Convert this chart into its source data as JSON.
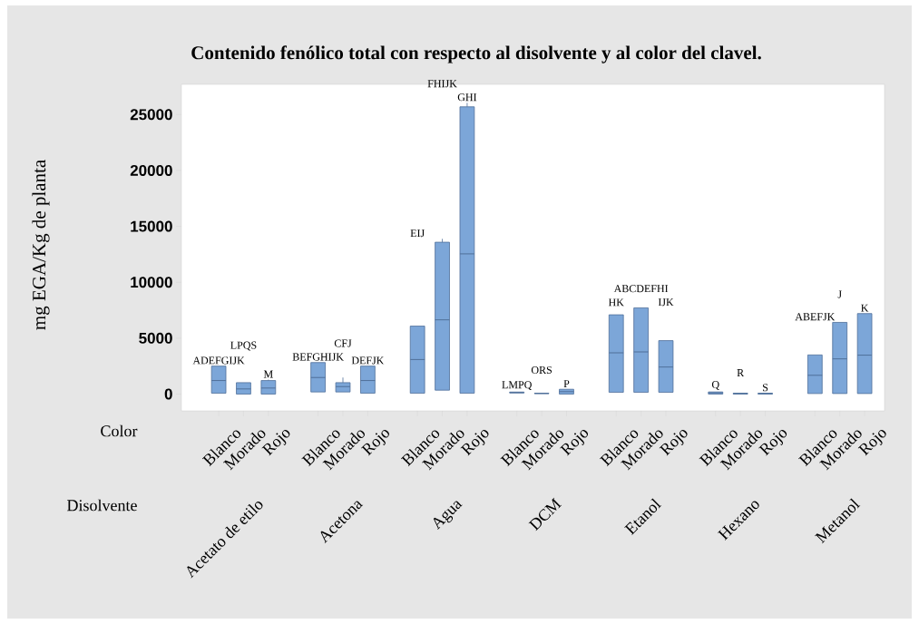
{
  "chart_data": {
    "type": "box",
    "title": "Contenido fenólico total con respecto al disolvente y al color del clavel.",
    "ylabel": "mg EGA/Kg de planta",
    "categories": [
      "Blanco",
      "Morado",
      "Rojo",
      null,
      "Blanco",
      "Morado",
      "Rojo",
      null,
      "Blanco",
      "Morado",
      "Rojo",
      null,
      "Blanco",
      "Morado",
      "Rojo",
      null,
      "Blanco",
      "Morado",
      "Rojo",
      null,
      "Blanco",
      "Morado",
      "Rojo",
      null,
      "Blanco",
      "Morado",
      "Rojo"
    ],
    "boxes": [
      {
        "low": 80,
        "q1": 80,
        "median": 1210,
        "q3": 2500,
        "high": 2500
      },
      {
        "low": 0,
        "q1": 0,
        "median": 460,
        "q3": 1020,
        "high": 1020
      },
      {
        "low": 0,
        "q1": 0,
        "median": 540,
        "q3": 1210,
        "high": 1290
      },
      null,
      {
        "low": 190,
        "q1": 190,
        "median": 1480,
        "q3": 2820,
        "high": 2820
      },
      {
        "low": 190,
        "q1": 190,
        "median": 670,
        "q3": 1020,
        "high": 1480
      },
      {
        "low": 80,
        "q1": 80,
        "median": 1210,
        "q3": 2500,
        "high": 2500
      },
      null,
      {
        "low": 80,
        "q1": 80,
        "median": 3090,
        "q3": 6080,
        "high": 6080
      },
      {
        "low": 350,
        "q1": 350,
        "median": 6640,
        "q3": 13580,
        "high": 13880
      },
      {
        "low": 80,
        "q1": 80,
        "median": 12540,
        "q3": 25690,
        "high": 26040
      },
      null,
      {
        "low": 100,
        "q1": 100,
        "median": 140,
        "q3": 180,
        "high": 180
      },
      {
        "low": 40,
        "q1": 40,
        "median": 60,
        "q3": 80,
        "high": 80
      },
      {
        "low": 0,
        "q1": 0,
        "median": 220,
        "q3": 430,
        "high": 430
      },
      null,
      {
        "low": 160,
        "q1": 160,
        "median": 3690,
        "q3": 7090,
        "high": 7090
      },
      {
        "low": 160,
        "q1": 160,
        "median": 3770,
        "q3": 7710,
        "high": 7710
      },
      {
        "low": 160,
        "q1": 160,
        "median": 2420,
        "q3": 4780,
        "high": 4780
      },
      null,
      {
        "low": 0,
        "q1": 0,
        "median": 110,
        "q3": 190,
        "high": 190
      },
      {
        "low": 0,
        "q1": 0,
        "median": 50,
        "q3": 80,
        "high": 80
      },
      {
        "low": 0,
        "q1": 0,
        "median": 50,
        "q3": 80,
        "high": 80
      },
      null,
      {
        "low": 50,
        "q1": 50,
        "median": 1680,
        "q3": 3500,
        "high": 3500
      },
      {
        "low": 50,
        "q1": 50,
        "median": 3150,
        "q3": 6410,
        "high": 6410
      },
      {
        "low": 50,
        "q1": 50,
        "median": 3480,
        "q3": 7200,
        "high": 7200
      }
    ],
    "value_labels": [
      "ADEFGIJK",
      "LPQS",
      "M",
      null,
      "BEFGHIJK",
      "CFJ",
      "DEFJK",
      null,
      "EIJ",
      "FHIJK",
      "GHI",
      null,
      "LMPQ",
      "ORS",
      "P",
      null,
      "HK",
      "ABCDEFHI",
      "IJK",
      null,
      "Q",
      "R",
      "S",
      null,
      "ABEFJK",
      "J",
      "K"
    ],
    "annotations": [
      "Color",
      "Disolvente",
      "Acetato de etilo",
      "Acetona",
      "Agua",
      "DCM",
      "Etanol",
      "Hexano",
      "Metanol"
    ],
    "color": "#7ca6d8",
    "ylim": [
      -1500,
      27700
    ],
    "yticks": [
      0,
      5000,
      10000,
      15000,
      20000,
      25000
    ]
  }
}
